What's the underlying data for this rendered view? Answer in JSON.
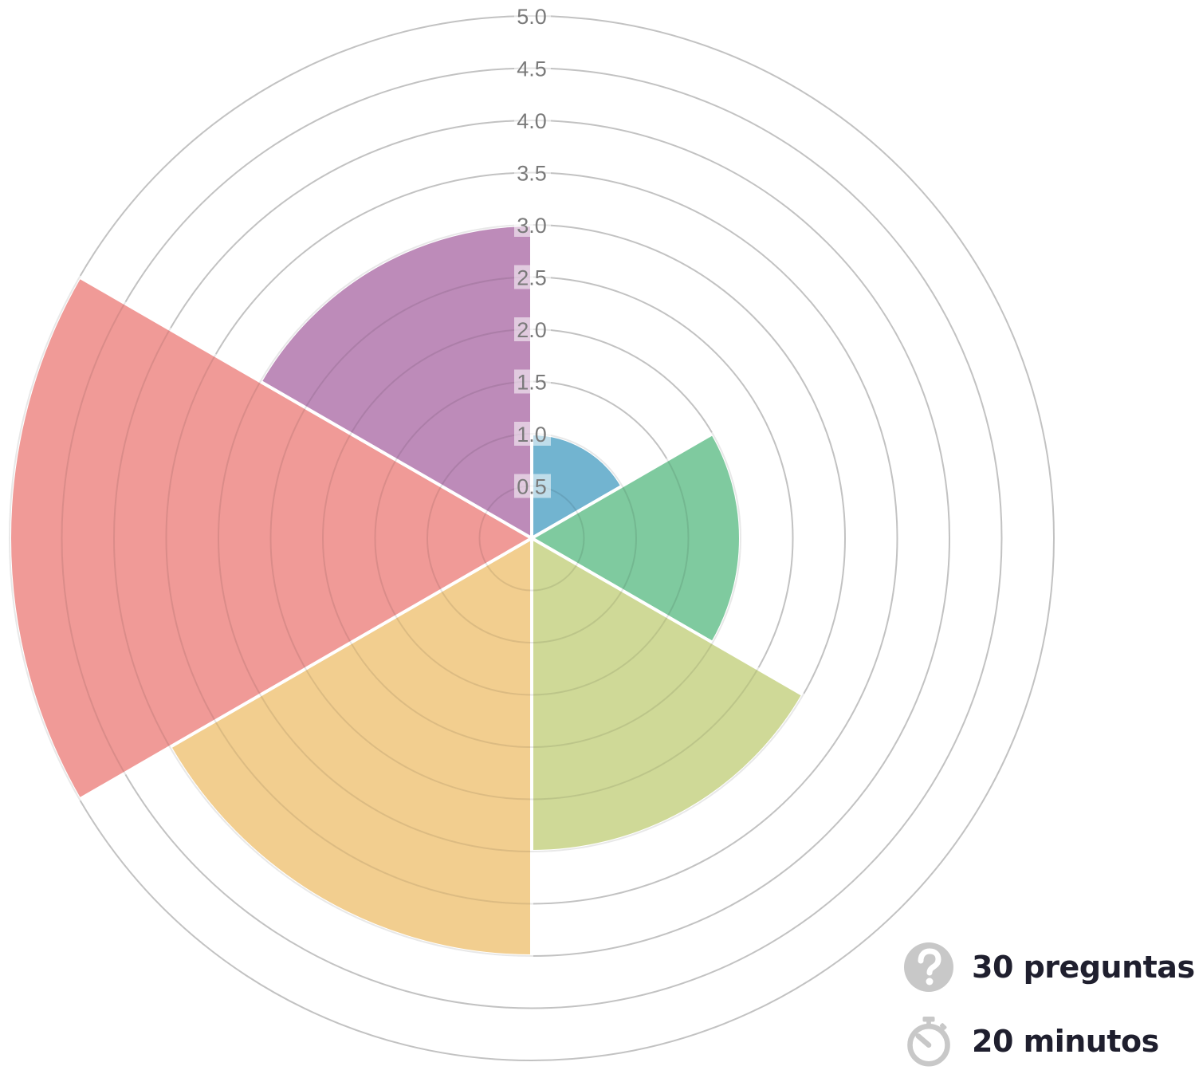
{
  "chart_data": {
    "type": "polarArea",
    "segments": [
      {
        "value": 1.0,
        "color": "#72b4d0"
      },
      {
        "value": 2.0,
        "color": "#7fca9f"
      },
      {
        "value": 3.0,
        "color": "#cfd997"
      },
      {
        "value": 4.0,
        "color": "#f2ce8f"
      },
      {
        "value": 5.0,
        "color": "#f09a97"
      },
      {
        "value": 3.0,
        "color": "#bd8bb9"
      }
    ],
    "r_ticks": [
      "0.5",
      "1.0",
      "1.5",
      "2.0",
      "2.5",
      "3.0",
      "3.5",
      "4.0",
      "4.5",
      "5.0"
    ],
    "r_range": [
      0,
      5
    ],
    "grid": true,
    "start_angle_deg": 0,
    "direction": "clockwise"
  },
  "info": {
    "questions": "30 preguntas",
    "duration": "20 minutos",
    "questions_icon": "question-circle-icon",
    "duration_icon": "stopwatch-icon",
    "icon_color": "#c8c8c8"
  }
}
